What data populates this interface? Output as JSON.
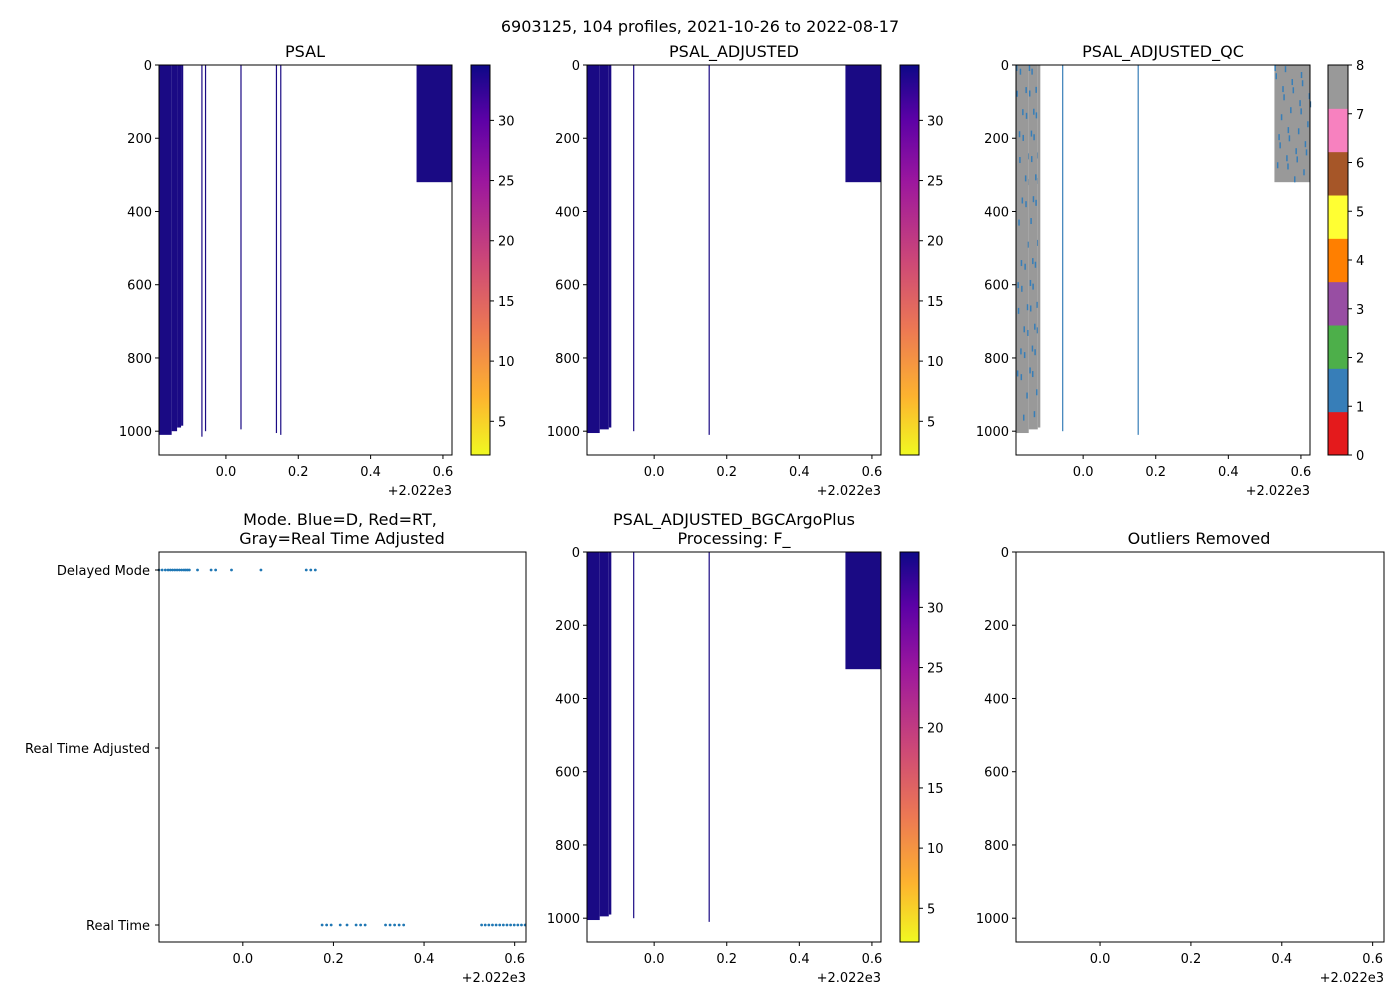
{
  "figure": {
    "suptitle": "6903125, 104 profiles, 2021-10-26 to 2022-08-17",
    "x_offset_label": "+2.022e3"
  },
  "colors": {
    "profile": "#1a0a84",
    "dots": "#1f77b4",
    "qc_bg_gray": "#999999",
    "qc_blue": "#377eb8"
  },
  "colorbar_plasma": {
    "ticks": [
      5,
      10,
      15,
      20,
      25,
      30
    ],
    "range": [
      2.2,
      34.6
    ]
  },
  "colorbar_qc": {
    "ticks": [
      0,
      1,
      2,
      3,
      4,
      5,
      6,
      7,
      8
    ],
    "colors": [
      "#e41a1c",
      "#377eb8",
      "#4daf4a",
      "#984ea3",
      "#ff7f00",
      "#ffff33",
      "#a65628",
      "#f781bf",
      "#999999"
    ]
  },
  "chart_data": [
    {
      "id": "psal",
      "type": "heatmap",
      "title": "PSAL",
      "xlim": [
        -0.185,
        0.625
      ],
      "ylim": [
        0,
        1065
      ],
      "xticks": [
        0.0,
        0.2,
        0.4,
        0.6
      ],
      "yticks": [
        0,
        200,
        400,
        600,
        800,
        1000
      ],
      "colorbar": "plasma",
      "profiles": [
        {
          "x0": -0.185,
          "x1": -0.15,
          "depth": 1010
        },
        {
          "x0": -0.15,
          "x1": -0.135,
          "depth": 1000
        },
        {
          "x0": -0.135,
          "x1": -0.124,
          "depth": 990
        },
        {
          "x0": -0.124,
          "x1": -0.118,
          "depth": 985
        },
        {
          "x0": -0.068,
          "x1": -0.065,
          "depth": 1015
        },
        {
          "x0": -0.058,
          "x1": -0.055,
          "depth": 1000
        },
        {
          "x0": 0.04,
          "x1": 0.043,
          "depth": 995
        },
        {
          "x0": 0.138,
          "x1": 0.141,
          "depth": 1005
        },
        {
          "x0": 0.15,
          "x1": 0.153,
          "depth": 1010
        },
        {
          "x0": 0.527,
          "x1": 0.625,
          "depth": 320
        }
      ]
    },
    {
      "id": "psal_adjusted",
      "type": "heatmap",
      "title": "PSAL_ADJUSTED",
      "xlim": [
        -0.185,
        0.625
      ],
      "ylim": [
        0,
        1065
      ],
      "xticks": [
        0.0,
        0.2,
        0.4,
        0.6
      ],
      "yticks": [
        0,
        200,
        400,
        600,
        800,
        1000
      ],
      "colorbar": "plasma",
      "profiles": [
        {
          "x0": -0.185,
          "x1": -0.15,
          "depth": 1005
        },
        {
          "x0": -0.15,
          "x1": -0.125,
          "depth": 995
        },
        {
          "x0": -0.125,
          "x1": -0.118,
          "depth": 990
        },
        {
          "x0": -0.058,
          "x1": -0.055,
          "depth": 1000
        },
        {
          "x0": 0.15,
          "x1": 0.153,
          "depth": 1010
        },
        {
          "x0": 0.527,
          "x1": 0.625,
          "depth": 320
        }
      ]
    },
    {
      "id": "psal_adjusted_qc",
      "type": "heatmap",
      "title": "PSAL_ADJUSTED_QC",
      "xlim": [
        -0.185,
        0.625
      ],
      "ylim": [
        0,
        1065
      ],
      "xticks": [
        0.0,
        0.2,
        0.4,
        0.6
      ],
      "yticks": [
        0,
        200,
        400,
        600,
        800,
        1000
      ],
      "colorbar": "qc",
      "profiles": [
        {
          "x0": -0.185,
          "x1": -0.15,
          "depth": 1005,
          "qc": 8
        },
        {
          "x0": -0.15,
          "x1": -0.125,
          "depth": 995,
          "qc": 8
        },
        {
          "x0": -0.125,
          "x1": -0.118,
          "depth": 990,
          "qc": 8
        },
        {
          "x0": -0.058,
          "x1": -0.055,
          "depth": 1000,
          "qc": 1
        },
        {
          "x0": 0.15,
          "x1": 0.153,
          "depth": 1010,
          "qc": 1
        },
        {
          "x0": 0.527,
          "x1": 0.625,
          "depth": 320,
          "qc": 8
        }
      ]
    },
    {
      "id": "mode",
      "type": "scatter",
      "title": "Mode. Blue=D, Red=RT,\nGray=Real Time Adjusted",
      "xlim": [
        -0.185,
        0.625
      ],
      "xticks": [
        0.0,
        0.2,
        0.4,
        0.6
      ],
      "categories": [
        "Delayed Mode",
        "Real Time Adjusted",
        "Real Time"
      ],
      "delayed_x": [
        -0.185,
        -0.178,
        -0.171,
        -0.165,
        -0.16,
        -0.155,
        -0.15,
        -0.145,
        -0.14,
        -0.135,
        -0.13,
        -0.126,
        -0.122,
        -0.118,
        -0.1,
        -0.07,
        -0.06,
        -0.025,
        0.04,
        0.14,
        0.15,
        0.16
      ],
      "realtime_x": [
        0.175,
        0.185,
        0.195,
        0.215,
        0.23,
        0.25,
        0.26,
        0.27,
        0.315,
        0.325,
        0.335,
        0.345,
        0.355,
        0.527,
        0.535,
        0.543,
        0.551,
        0.559,
        0.567,
        0.575,
        0.583,
        0.591,
        0.599,
        0.607,
        0.615,
        0.623
      ]
    },
    {
      "id": "bgc",
      "type": "heatmap",
      "title": "PSAL_ADJUSTED_BGCArgoPlus\nProcessing: F_",
      "xlim": [
        -0.185,
        0.625
      ],
      "ylim": [
        0,
        1065
      ],
      "xticks": [
        0.0,
        0.2,
        0.4,
        0.6
      ],
      "yticks": [
        0,
        200,
        400,
        600,
        800,
        1000
      ],
      "colorbar": "plasma",
      "profiles": [
        {
          "x0": -0.185,
          "x1": -0.15,
          "depth": 1005
        },
        {
          "x0": -0.15,
          "x1": -0.125,
          "depth": 995
        },
        {
          "x0": -0.125,
          "x1": -0.118,
          "depth": 990
        },
        {
          "x0": -0.058,
          "x1": -0.055,
          "depth": 1000
        },
        {
          "x0": 0.15,
          "x1": 0.153,
          "depth": 1010
        },
        {
          "x0": 0.527,
          "x1": 0.625,
          "depth": 320
        }
      ]
    },
    {
      "id": "outliers",
      "type": "heatmap",
      "title": "Outliers Removed",
      "xlim": [
        -0.185,
        0.625
      ],
      "ylim": [
        0,
        1065
      ],
      "xticks": [
        0.0,
        0.2,
        0.4,
        0.6
      ],
      "yticks": [
        0,
        200,
        400,
        600,
        800,
        1000
      ],
      "colorbar": null,
      "profiles": []
    }
  ]
}
